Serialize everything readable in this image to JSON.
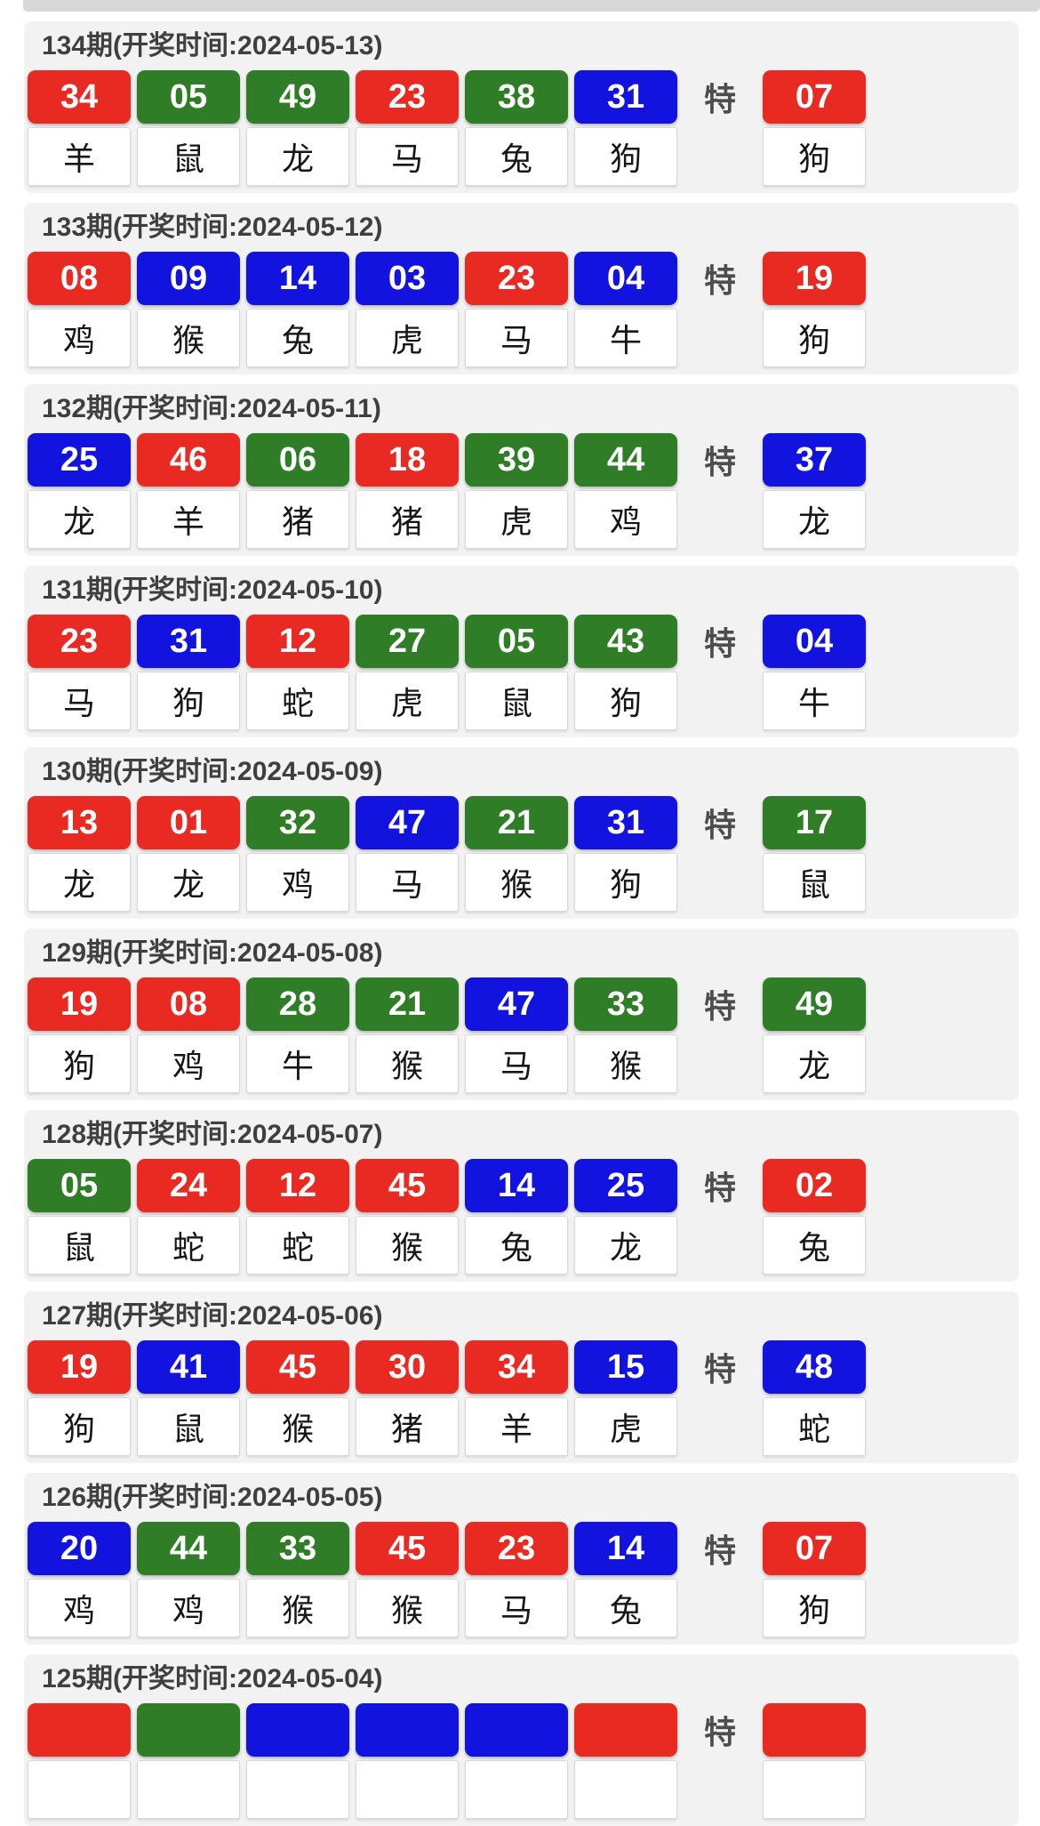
{
  "page": {
    "special_label": "特",
    "colors": {
      "red": "#e92a22",
      "green": "#2f7d26",
      "blue": "#1313e0"
    }
  },
  "periods": [
    {
      "title": "134期(开奖时间:2024-05-13)",
      "numbers": [
        {
          "value": "34",
          "color": "red",
          "zodiac": "羊"
        },
        {
          "value": "05",
          "color": "green",
          "zodiac": "鼠"
        },
        {
          "value": "49",
          "color": "green",
          "zodiac": "龙"
        },
        {
          "value": "23",
          "color": "red",
          "zodiac": "马"
        },
        {
          "value": "38",
          "color": "green",
          "zodiac": "兔"
        },
        {
          "value": "31",
          "color": "blue",
          "zodiac": "狗"
        }
      ],
      "special": {
        "value": "07",
        "color": "red",
        "zodiac": "狗"
      }
    },
    {
      "title": "133期(开奖时间:2024-05-12)",
      "numbers": [
        {
          "value": "08",
          "color": "red",
          "zodiac": "鸡"
        },
        {
          "value": "09",
          "color": "blue",
          "zodiac": "猴"
        },
        {
          "value": "14",
          "color": "blue",
          "zodiac": "兔"
        },
        {
          "value": "03",
          "color": "blue",
          "zodiac": "虎"
        },
        {
          "value": "23",
          "color": "red",
          "zodiac": "马"
        },
        {
          "value": "04",
          "color": "blue",
          "zodiac": "牛"
        }
      ],
      "special": {
        "value": "19",
        "color": "red",
        "zodiac": "狗"
      }
    },
    {
      "title": "132期(开奖时间:2024-05-11)",
      "numbers": [
        {
          "value": "25",
          "color": "blue",
          "zodiac": "龙"
        },
        {
          "value": "46",
          "color": "red",
          "zodiac": "羊"
        },
        {
          "value": "06",
          "color": "green",
          "zodiac": "猪"
        },
        {
          "value": "18",
          "color": "red",
          "zodiac": "猪"
        },
        {
          "value": "39",
          "color": "green",
          "zodiac": "虎"
        },
        {
          "value": "44",
          "color": "green",
          "zodiac": "鸡"
        }
      ],
      "special": {
        "value": "37",
        "color": "blue",
        "zodiac": "龙"
      }
    },
    {
      "title": "131期(开奖时间:2024-05-10)",
      "numbers": [
        {
          "value": "23",
          "color": "red",
          "zodiac": "马"
        },
        {
          "value": "31",
          "color": "blue",
          "zodiac": "狗"
        },
        {
          "value": "12",
          "color": "red",
          "zodiac": "蛇"
        },
        {
          "value": "27",
          "color": "green",
          "zodiac": "虎"
        },
        {
          "value": "05",
          "color": "green",
          "zodiac": "鼠"
        },
        {
          "value": "43",
          "color": "green",
          "zodiac": "狗"
        }
      ],
      "special": {
        "value": "04",
        "color": "blue",
        "zodiac": "牛"
      }
    },
    {
      "title": "130期(开奖时间:2024-05-09)",
      "numbers": [
        {
          "value": "13",
          "color": "red",
          "zodiac": "龙"
        },
        {
          "value": "01",
          "color": "red",
          "zodiac": "龙"
        },
        {
          "value": "32",
          "color": "green",
          "zodiac": "鸡"
        },
        {
          "value": "47",
          "color": "blue",
          "zodiac": "马"
        },
        {
          "value": "21",
          "color": "green",
          "zodiac": "猴"
        },
        {
          "value": "31",
          "color": "blue",
          "zodiac": "狗"
        }
      ],
      "special": {
        "value": "17",
        "color": "green",
        "zodiac": "鼠"
      }
    },
    {
      "title": "129期(开奖时间:2024-05-08)",
      "numbers": [
        {
          "value": "19",
          "color": "red",
          "zodiac": "狗"
        },
        {
          "value": "08",
          "color": "red",
          "zodiac": "鸡"
        },
        {
          "value": "28",
          "color": "green",
          "zodiac": "牛"
        },
        {
          "value": "21",
          "color": "green",
          "zodiac": "猴"
        },
        {
          "value": "47",
          "color": "blue",
          "zodiac": "马"
        },
        {
          "value": "33",
          "color": "green",
          "zodiac": "猴"
        }
      ],
      "special": {
        "value": "49",
        "color": "green",
        "zodiac": "龙"
      }
    },
    {
      "title": "128期(开奖时间:2024-05-07)",
      "numbers": [
        {
          "value": "05",
          "color": "green",
          "zodiac": "鼠"
        },
        {
          "value": "24",
          "color": "red",
          "zodiac": "蛇"
        },
        {
          "value": "12",
          "color": "red",
          "zodiac": "蛇"
        },
        {
          "value": "45",
          "color": "red",
          "zodiac": "猴"
        },
        {
          "value": "14",
          "color": "blue",
          "zodiac": "兔"
        },
        {
          "value": "25",
          "color": "blue",
          "zodiac": "龙"
        }
      ],
      "special": {
        "value": "02",
        "color": "red",
        "zodiac": "兔"
      }
    },
    {
      "title": "127期(开奖时间:2024-05-06)",
      "numbers": [
        {
          "value": "19",
          "color": "red",
          "zodiac": "狗"
        },
        {
          "value": "41",
          "color": "blue",
          "zodiac": "鼠"
        },
        {
          "value": "45",
          "color": "red",
          "zodiac": "猴"
        },
        {
          "value": "30",
          "color": "red",
          "zodiac": "猪"
        },
        {
          "value": "34",
          "color": "red",
          "zodiac": "羊"
        },
        {
          "value": "15",
          "color": "blue",
          "zodiac": "虎"
        }
      ],
      "special": {
        "value": "48",
        "color": "blue",
        "zodiac": "蛇"
      }
    },
    {
      "title": "126期(开奖时间:2024-05-05)",
      "numbers": [
        {
          "value": "20",
          "color": "blue",
          "zodiac": "鸡"
        },
        {
          "value": "44",
          "color": "green",
          "zodiac": "鸡"
        },
        {
          "value": "33",
          "color": "green",
          "zodiac": "猴"
        },
        {
          "value": "45",
          "color": "red",
          "zodiac": "猴"
        },
        {
          "value": "23",
          "color": "red",
          "zodiac": "马"
        },
        {
          "value": "14",
          "color": "blue",
          "zodiac": "兔"
        }
      ],
      "special": {
        "value": "07",
        "color": "red",
        "zodiac": "狗"
      }
    },
    {
      "title": "125期(开奖时间:2024-05-04)",
      "numbers": [
        {
          "value": "",
          "color": "red",
          "zodiac": ""
        },
        {
          "value": "",
          "color": "green",
          "zodiac": ""
        },
        {
          "value": "",
          "color": "blue",
          "zodiac": ""
        },
        {
          "value": "",
          "color": "blue",
          "zodiac": ""
        },
        {
          "value": "",
          "color": "blue",
          "zodiac": ""
        },
        {
          "value": "",
          "color": "red",
          "zodiac": ""
        }
      ],
      "special": {
        "value": "",
        "color": "red",
        "zodiac": ""
      }
    }
  ]
}
